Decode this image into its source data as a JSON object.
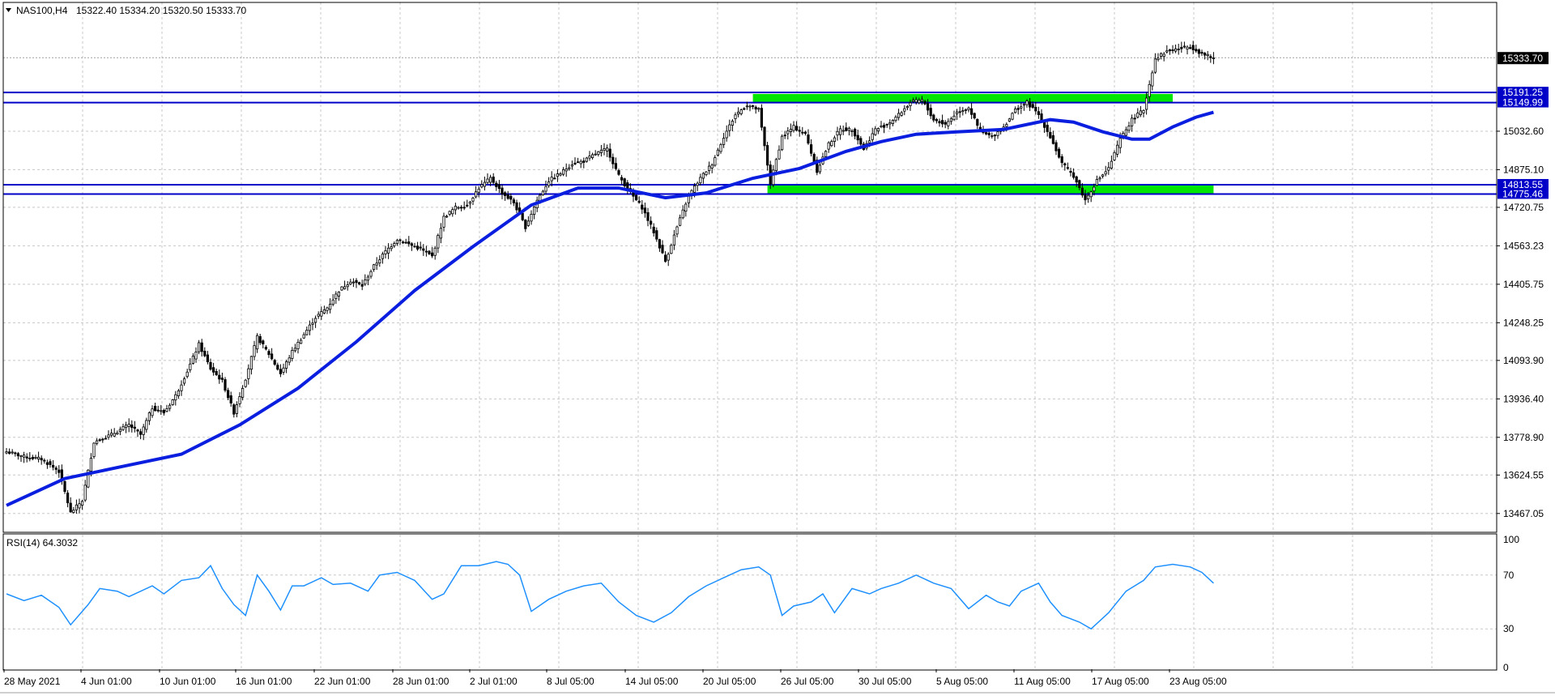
{
  "header": {
    "symbol": "NAS100,H4",
    "ohlc": "15322.40 15334.20 15320.50 15333.70"
  },
  "rsi_header": "RSI(14) 64.3032",
  "colors": {
    "background": "#ffffff",
    "grid": "#c8c8c8",
    "candle": "#000000",
    "ma_line": "#0a1ee0",
    "h_line": "#0000c8",
    "zone": "#00e600",
    "rsi_line": "#1e90ff",
    "price_tag_bg": "#000000",
    "level_tag_bg": "#0000c8"
  },
  "chart_data": [
    {
      "type": "candlestick",
      "title": "NAS100,H4",
      "ylim": [
        13390,
        15560
      ],
      "y_ticks": [
        15032.6,
        14875.1,
        14720.75,
        14563.23,
        14405.75,
        14248.25,
        14093.9,
        13936.4,
        13778.9,
        13624.55,
        13467.05
      ],
      "current_price": "15333.70",
      "x_ticks": [
        "28 May 2021",
        "4 Jun 01:00",
        "10 Jun 01:00",
        "16 Jun 01:00",
        "22 Jun 01:00",
        "28 Jun 01:00",
        "2 Jul 01:00",
        "8 Jul 05:00",
        "14 Jul 05:00",
        "20 Jul 05:00",
        "26 Jul 05:00",
        "30 Jul 05:00",
        "5 Aug 05:00",
        "11 Aug 05:00",
        "17 Aug 05:00",
        "23 Aug 05:00"
      ],
      "price_path": [
        [
          0,
          13720
        ],
        [
          6,
          13700
        ],
        [
          12,
          13690
        ],
        [
          18,
          13640
        ],
        [
          22,
          13470
        ],
        [
          26,
          13520
        ],
        [
          30,
          13760
        ],
        [
          36,
          13790
        ],
        [
          42,
          13830
        ],
        [
          46,
          13790
        ],
        [
          50,
          13900
        ],
        [
          54,
          13880
        ],
        [
          58,
          13950
        ],
        [
          62,
          14050
        ],
        [
          66,
          14160
        ],
        [
          70,
          14060
        ],
        [
          74,
          14010
        ],
        [
          78,
          13880
        ],
        [
          82,
          14020
        ],
        [
          86,
          14190
        ],
        [
          90,
          14120
        ],
        [
          94,
          14040
        ],
        [
          98,
          14130
        ],
        [
          102,
          14200
        ],
        [
          106,
          14270
        ],
        [
          110,
          14310
        ],
        [
          114,
          14380
        ],
        [
          118,
          14420
        ],
        [
          122,
          14400
        ],
        [
          126,
          14480
        ],
        [
          130,
          14540
        ],
        [
          134,
          14590
        ],
        [
          138,
          14570
        ],
        [
          142,
          14550
        ],
        [
          146,
          14520
        ],
        [
          150,
          14680
        ],
        [
          154,
          14720
        ],
        [
          158,
          14730
        ],
        [
          162,
          14800
        ],
        [
          166,
          14840
        ],
        [
          170,
          14780
        ],
        [
          174,
          14740
        ],
        [
          178,
          14640
        ],
        [
          182,
          14750
        ],
        [
          186,
          14830
        ],
        [
          190,
          14860
        ],
        [
          194,
          14900
        ],
        [
          198,
          14910
        ],
        [
          202,
          14940
        ],
        [
          206,
          14960
        ],
        [
          210,
          14850
        ],
        [
          214,
          14780
        ],
        [
          218,
          14720
        ],
        [
          222,
          14620
        ],
        [
          226,
          14500
        ],
        [
          230,
          14640
        ],
        [
          234,
          14770
        ],
        [
          238,
          14840
        ],
        [
          242,
          14900
        ],
        [
          246,
          15010
        ],
        [
          250,
          15100
        ],
        [
          254,
          15140
        ],
        [
          258,
          15120
        ],
        [
          262,
          14820
        ],
        [
          266,
          15010
        ],
        [
          270,
          15050
        ],
        [
          274,
          15020
        ],
        [
          278,
          14870
        ],
        [
          282,
          14980
        ],
        [
          286,
          15040
        ],
        [
          290,
          15040
        ],
        [
          294,
          14960
        ],
        [
          298,
          15040
        ],
        [
          302,
          15060
        ],
        [
          306,
          15100
        ],
        [
          310,
          15150
        ],
        [
          314,
          15160
        ],
        [
          318,
          15080
        ],
        [
          322,
          15060
        ],
        [
          326,
          15110
        ],
        [
          330,
          15130
        ],
        [
          334,
          15030
        ],
        [
          338,
          15010
        ],
        [
          342,
          15050
        ],
        [
          346,
          15120
        ],
        [
          350,
          15150
        ],
        [
          354,
          15100
        ],
        [
          358,
          15010
        ],
        [
          362,
          14900
        ],
        [
          366,
          14850
        ],
        [
          370,
          14750
        ],
        [
          374,
          14830
        ],
        [
          378,
          14880
        ],
        [
          382,
          15000
        ],
        [
          386,
          15080
        ],
        [
          390,
          15120
        ],
        [
          394,
          15330
        ],
        [
          398,
          15360
        ],
        [
          402,
          15370
        ],
        [
          406,
          15380
        ],
        [
          410,
          15350
        ],
        [
          414,
          15330
        ]
      ],
      "series": [
        {
          "name": "",
          "points": [
            [
              0,
              13500
            ],
            [
              20,
              13610
            ],
            [
              40,
              13660
            ],
            [
              60,
              13710
            ],
            [
              80,
              13830
            ],
            [
              100,
              13980
            ],
            [
              120,
              14170
            ],
            [
              140,
              14380
            ],
            [
              160,
              14560
            ],
            [
              180,
              14730
            ],
            [
              196,
              14800
            ],
            [
              210,
              14800
            ],
            [
              226,
              14760
            ],
            [
              240,
              14780
            ],
            [
              256,
              14840
            ],
            [
              272,
              14880
            ],
            [
              288,
              14950
            ],
            [
              300,
              14990
            ],
            [
              312,
              15020
            ],
            [
              326,
              15030
            ],
            [
              342,
              15040
            ],
            [
              358,
              15080
            ],
            [
              366,
              15070
            ],
            [
              376,
              15030
            ],
            [
              386,
              15000
            ],
            [
              392,
              15000
            ],
            [
              400,
              15050
            ],
            [
              408,
              15090
            ],
            [
              414,
              15110
            ]
          ]
        }
      ],
      "h_levels": [
        "15191.25",
        "15149.99",
        "14813.55",
        "14775.46"
      ],
      "zones": [
        {
          "x0": 256,
          "x1": 400,
          "y0": 15150,
          "y1": 15185
        },
        {
          "x0": 261,
          "x1": 414,
          "y0": 14778,
          "y1": 14812
        }
      ]
    },
    {
      "type": "line",
      "title": "RSI(14) 64.3032",
      "ylim": [
        0,
        100
      ],
      "y_ticks": [
        100,
        70,
        30,
        0
      ],
      "series": [
        {
          "name": "",
          "points": [
            [
              0,
              56
            ],
            [
              6,
              51
            ],
            [
              12,
              55
            ],
            [
              18,
              46
            ],
            [
              22,
              33
            ],
            [
              28,
              48
            ],
            [
              32,
              60
            ],
            [
              38,
              58
            ],
            [
              42,
              54
            ],
            [
              50,
              62
            ],
            [
              54,
              56
            ],
            [
              60,
              66
            ],
            [
              66,
              68
            ],
            [
              70,
              77
            ],
            [
              74,
              60
            ],
            [
              78,
              48
            ],
            [
              82,
              40
            ],
            [
              86,
              70
            ],
            [
              90,
              58
            ],
            [
              94,
              44
            ],
            [
              98,
              62
            ],
            [
              102,
              62
            ],
            [
              108,
              68
            ],
            [
              112,
              63
            ],
            [
              118,
              64
            ],
            [
              124,
              58
            ],
            [
              128,
              70
            ],
            [
              134,
              72
            ],
            [
              140,
              66
            ],
            [
              146,
              52
            ],
            [
              150,
              56
            ],
            [
              156,
              77
            ],
            [
              162,
              77
            ],
            [
              168,
              80
            ],
            [
              172,
              78
            ],
            [
              176,
              70
            ],
            [
              180,
              43
            ],
            [
              186,
              52
            ],
            [
              192,
              58
            ],
            [
              198,
              62
            ],
            [
              204,
              64
            ],
            [
              210,
              50
            ],
            [
              216,
              40
            ],
            [
              222,
              35
            ],
            [
              228,
              42
            ],
            [
              234,
              54
            ],
            [
              240,
              62
            ],
            [
              246,
              68
            ],
            [
              252,
              74
            ],
            [
              258,
              76
            ],
            [
              262,
              70
            ],
            [
              266,
              40
            ],
            [
              270,
              47
            ],
            [
              276,
              50
            ],
            [
              280,
              56
            ],
            [
              284,
              42
            ],
            [
              290,
              60
            ],
            [
              296,
              56
            ],
            [
              300,
              60
            ],
            [
              306,
              64
            ],
            [
              312,
              70
            ],
            [
              318,
              64
            ],
            [
              324,
              60
            ],
            [
              330,
              45
            ],
            [
              336,
              55
            ],
            [
              340,
              50
            ],
            [
              344,
              47
            ],
            [
              348,
              58
            ],
            [
              354,
              64
            ],
            [
              358,
              50
            ],
            [
              362,
              40
            ],
            [
              368,
              35
            ],
            [
              372,
              30
            ],
            [
              378,
              42
            ],
            [
              384,
              58
            ],
            [
              390,
              66
            ],
            [
              394,
              76
            ],
            [
              400,
              78
            ],
            [
              406,
              76
            ],
            [
              410,
              72
            ],
            [
              414,
              64
            ]
          ]
        }
      ]
    }
  ]
}
